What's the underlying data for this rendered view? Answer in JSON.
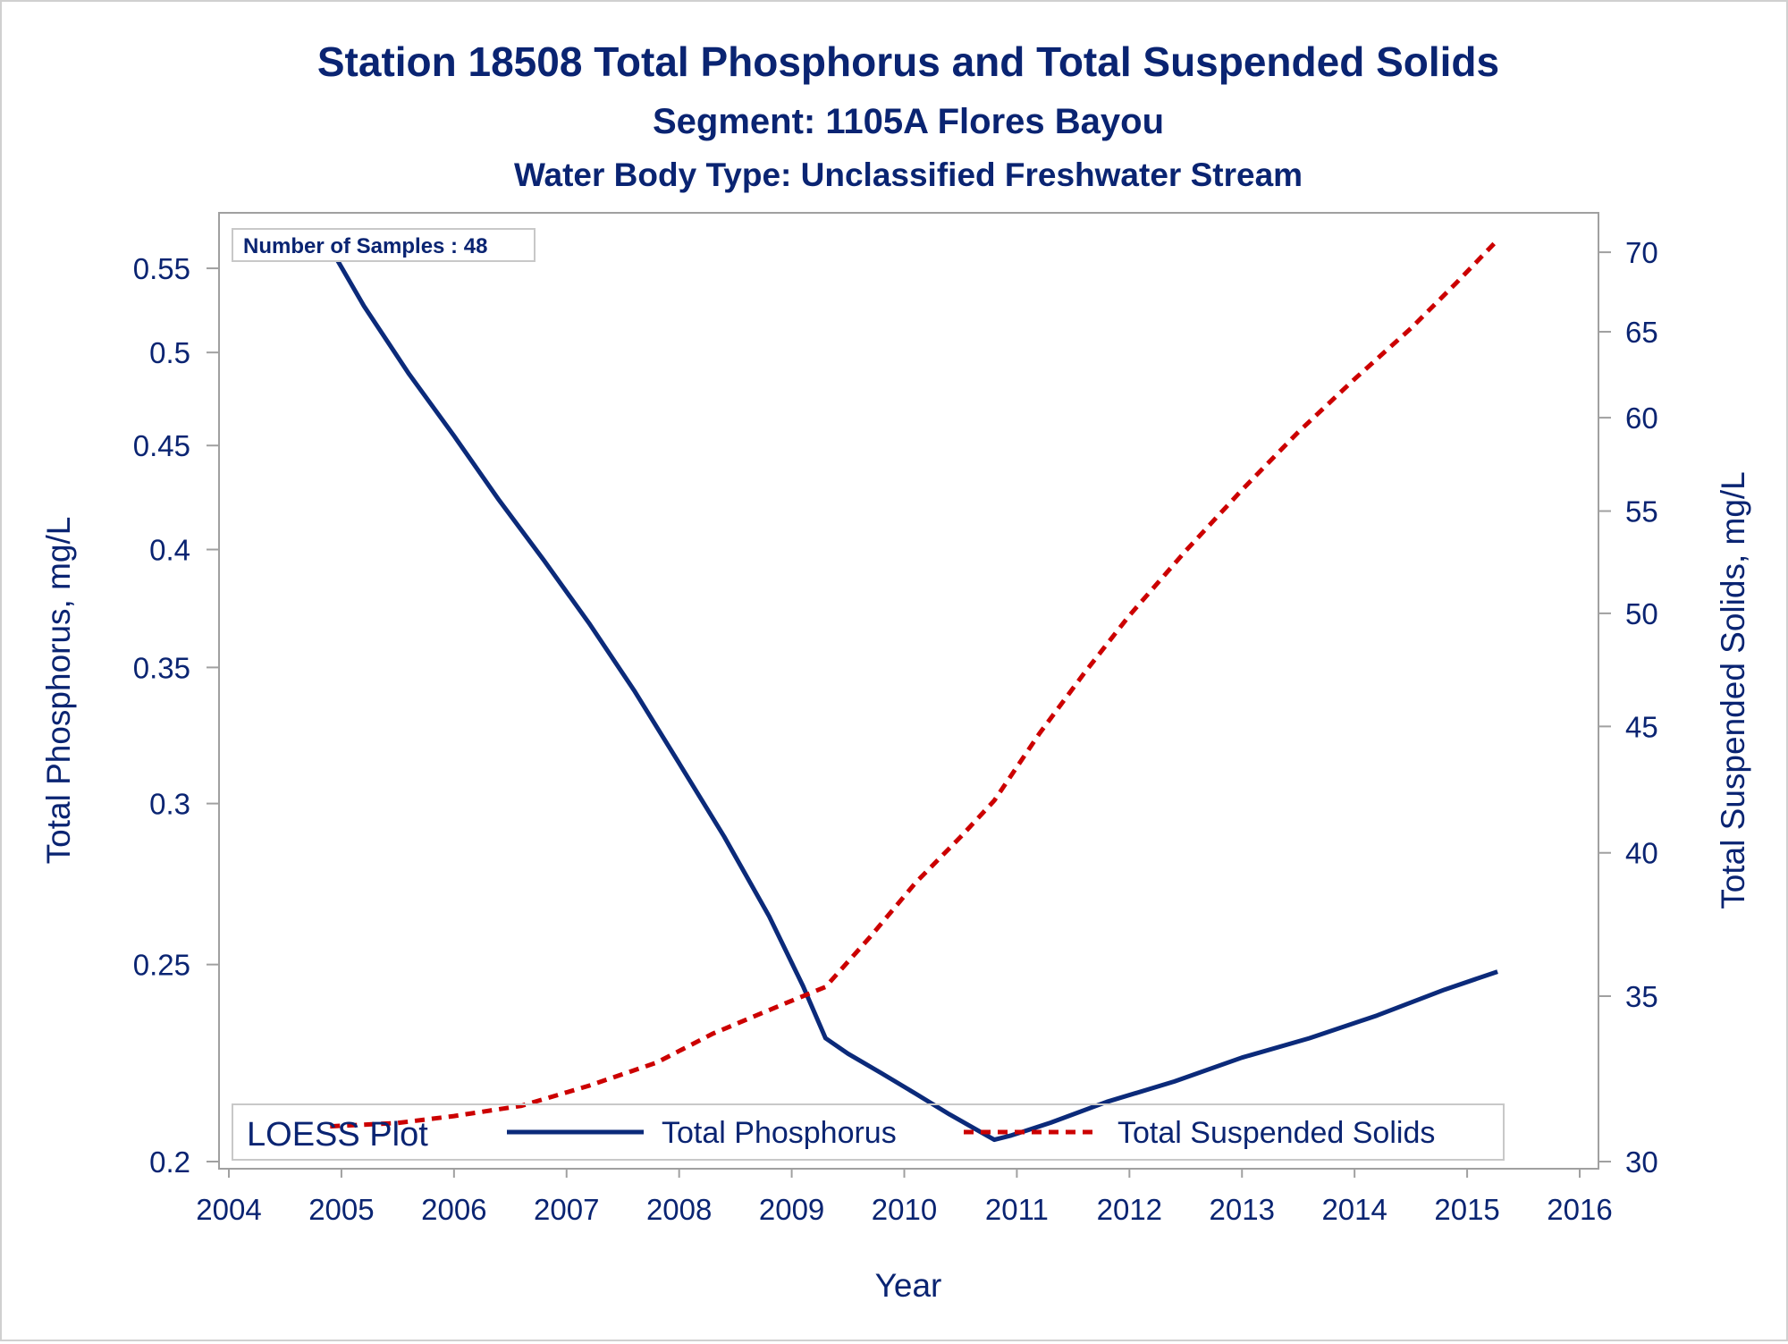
{
  "colors": {
    "text": "#0a2472",
    "phosphorus": "#0b2a7a",
    "tss": "#cc0000",
    "frame": "#a0a0a0",
    "legend_border": "#c8c8c8"
  },
  "title": "Station 18508  Total Phosphorus and Total Suspended Solids",
  "subtitle": "Segment: 1105A  Flores Bayou",
  "subtitle2": "Water Body Type: Unclassified Freshwater Stream",
  "inset": "Number of Samples : 48",
  "legend": {
    "title": "LOESS Plot",
    "items": [
      "Total Phosphorus",
      "Total Suspended Solids"
    ]
  },
  "chart_data": {
    "type": "line",
    "title": "Station 18508  Total Phosphorus and Total Suspended Solids",
    "xlabel": "Year",
    "ylabel": "Total Phosphorus, mg/L",
    "y2label": "Total Suspended Solids, mg/L",
    "y_scale": "log",
    "y2_scale": "log",
    "xlim": [
      2004,
      2016
    ],
    "ylim": [
      0.2,
      0.567
    ],
    "y2lim": [
      30,
      71.3
    ],
    "x_ticks": [
      "2004",
      "2005",
      "2006",
      "2007",
      "2008",
      "2009",
      "2010",
      "2011",
      "2012",
      "2013",
      "2014",
      "2015",
      "2016"
    ],
    "y_ticks": [
      "0.2",
      "0.25",
      "0.3",
      "0.35",
      "0.4",
      "0.45",
      "0.5",
      "0.55"
    ],
    "y2_ticks": [
      "30",
      "35",
      "40",
      "45",
      "50",
      "55",
      "60",
      "65",
      "70"
    ],
    "grid": false,
    "legend_position": "bottom",
    "series": [
      {
        "name": "Total Phosphorus",
        "axis": "left",
        "style": "solid",
        "points": [
          [
            2004.9,
            0.563
          ],
          [
            2005.2,
            0.527
          ],
          [
            2005.6,
            0.488
          ],
          [
            2006.0,
            0.455
          ],
          [
            2006.4,
            0.423
          ],
          [
            2006.8,
            0.395
          ],
          [
            2007.2,
            0.368
          ],
          [
            2007.6,
            0.341
          ],
          [
            2008.0,
            0.314
          ],
          [
            2008.4,
            0.289
          ],
          [
            2008.8,
            0.264
          ],
          [
            2009.1,
            0.244
          ],
          [
            2009.3,
            0.23
          ],
          [
            2009.5,
            0.226
          ],
          [
            2009.8,
            0.221
          ],
          [
            2010.1,
            0.216
          ],
          [
            2010.4,
            0.211
          ],
          [
            2010.6,
            0.208
          ],
          [
            2010.8,
            0.205
          ],
          [
            2010.95,
            0.206
          ],
          [
            2011.3,
            0.209
          ],
          [
            2011.8,
            0.214
          ],
          [
            2012.4,
            0.219
          ],
          [
            2013.0,
            0.225
          ],
          [
            2013.6,
            0.23
          ],
          [
            2014.2,
            0.236
          ],
          [
            2014.8,
            0.243
          ],
          [
            2015.27,
            0.248
          ]
        ]
      },
      {
        "name": "Total Suspended Solids",
        "axis": "right",
        "style": "dashed",
        "points": [
          [
            2004.9,
            31.0
          ],
          [
            2005.5,
            31.1
          ],
          [
            2006.0,
            31.3
          ],
          [
            2006.6,
            31.6
          ],
          [
            2007.2,
            32.2
          ],
          [
            2007.8,
            32.9
          ],
          [
            2008.3,
            33.8
          ],
          [
            2008.9,
            34.7
          ],
          [
            2009.3,
            35.3
          ],
          [
            2009.7,
            37.0
          ],
          [
            2010.1,
            38.9
          ],
          [
            2010.5,
            40.6
          ],
          [
            2010.8,
            42.0
          ],
          [
            2011.2,
            44.7
          ],
          [
            2011.6,
            47.3
          ],
          [
            2012.0,
            49.9
          ],
          [
            2012.5,
            53.0
          ],
          [
            2013.0,
            56.1
          ],
          [
            2013.5,
            59.2
          ],
          [
            2014.0,
            62.2
          ],
          [
            2014.5,
            65.2
          ],
          [
            2014.9,
            68.0
          ],
          [
            2015.27,
            70.8
          ]
        ]
      }
    ]
  }
}
